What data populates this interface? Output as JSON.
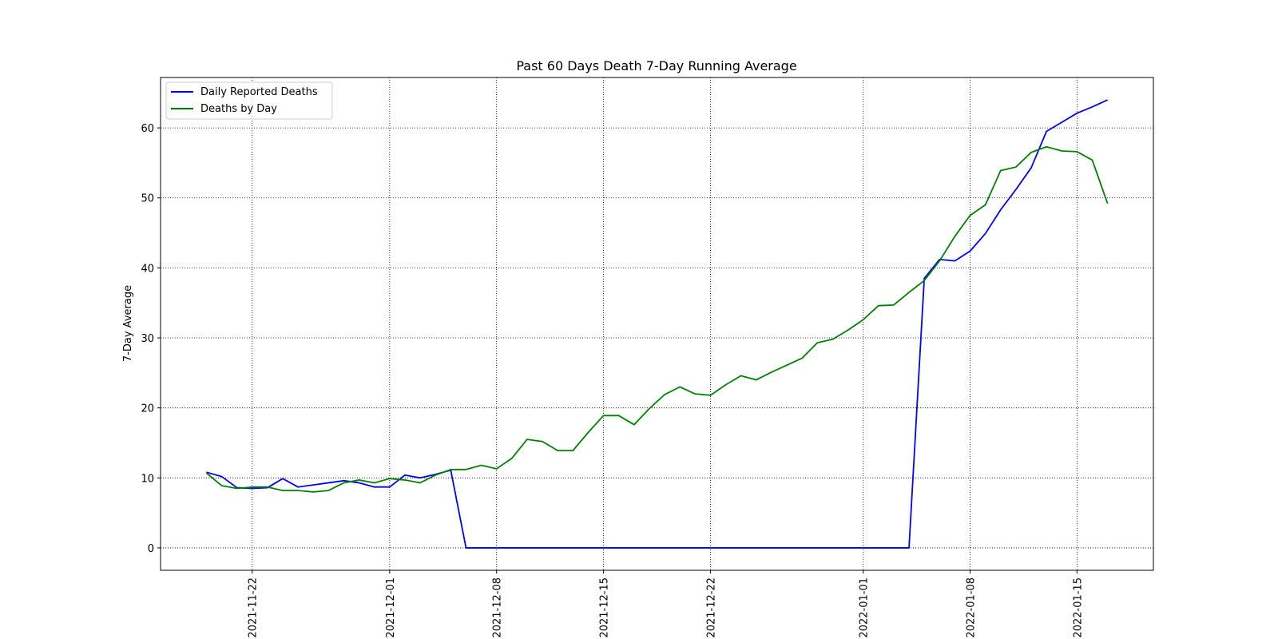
{
  "chart_data": {
    "type": "line",
    "title": "Past 60 Days Death 7-Day Running Average",
    "xlabel": "",
    "ylabel": "7-Day Average",
    "x_start": "2021-11-19",
    "x_end": "2022-01-17",
    "xlim": [
      "2021-11-16",
      "2022-01-20"
    ],
    "ylim": [
      -3.2,
      67.2
    ],
    "x_ticks": [
      "2021-11-22",
      "2021-12-01",
      "2021-12-08",
      "2021-12-15",
      "2021-12-22",
      "2022-01-01",
      "2022-01-08",
      "2022-01-15"
    ],
    "y_ticks": [
      0,
      10,
      20,
      30,
      40,
      50,
      60
    ],
    "grid": true,
    "legend_position": "upper left",
    "series": [
      {
        "name": "Daily Reported Deaths",
        "color": "#0000ff",
        "values": [
          10.8,
          10.2,
          8.6,
          8.5,
          8.6,
          9.9,
          8.7,
          9.0,
          9.3,
          9.6,
          9.3,
          8.7,
          8.7,
          10.4,
          10.0,
          10.5,
          11.1,
          0,
          0,
          0,
          0,
          0,
          0,
          0,
          0,
          0,
          0,
          0,
          0,
          0,
          0,
          0,
          0,
          0,
          0,
          0,
          0,
          0,
          0,
          0,
          0,
          0,
          0,
          0,
          0,
          0,
          0,
          38.5,
          41.2,
          41.0,
          42.4,
          44.9,
          48.3,
          51.2,
          54.3,
          59.5,
          60.8,
          62.1,
          63.0,
          64.0
        ]
      },
      {
        "name": "Deaths by Day",
        "color": "#008000",
        "values": [
          10.7,
          8.9,
          8.5,
          8.7,
          8.7,
          8.2,
          8.2,
          8.0,
          8.2,
          9.3,
          9.7,
          9.3,
          9.9,
          9.7,
          9.3,
          10.4,
          11.2,
          11.2,
          11.8,
          11.3,
          12.8,
          15.5,
          15.2,
          13.9,
          13.9,
          16.5,
          18.9,
          18.9,
          17.6,
          19.9,
          21.9,
          23.0,
          22.0,
          21.8,
          23.3,
          24.6,
          24.0,
          25.1,
          26.1,
          27.1,
          29.3,
          29.8,
          31.1,
          32.6,
          34.6,
          34.7,
          36.5,
          38.2,
          41.0,
          44.5,
          47.5,
          49.0,
          53.9,
          54.4,
          56.5,
          57.3,
          56.7,
          56.6,
          55.4,
          49.2
        ]
      }
    ]
  }
}
